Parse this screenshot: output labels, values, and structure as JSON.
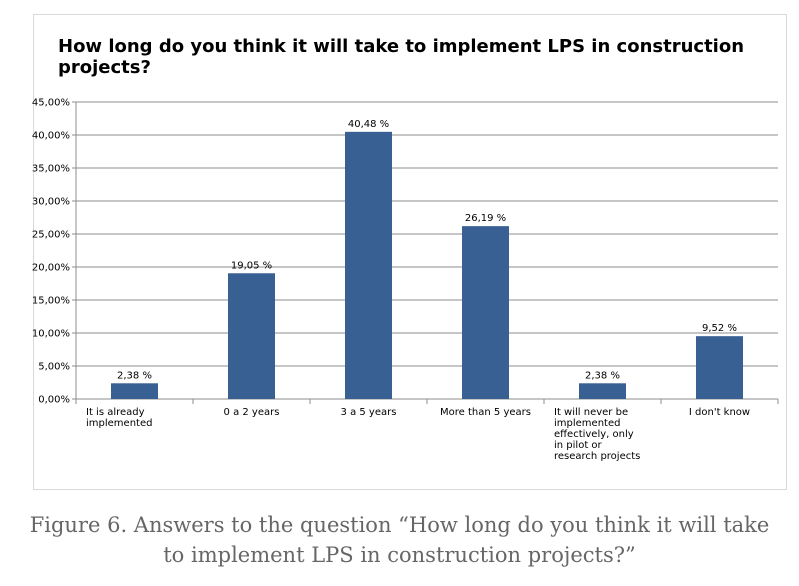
{
  "chart_data": {
    "type": "bar",
    "title": "How long do you think it will take to implement LPS in construction projects?",
    "categories": [
      "It is already implemented",
      "0 a 2 years",
      "3 a 5 years",
      "More than 5 years",
      "It will never be implemented effectively, only in pilot or research projects",
      "I don't know"
    ],
    "values": [
      2.38,
      19.05,
      40.48,
      26.19,
      2.38,
      9.52
    ],
    "value_labels": [
      "2,38 %",
      "19,05 %",
      "40,48 %",
      "26,19 %",
      "2,38 %",
      "9,52 %"
    ],
    "ylim": [
      0,
      45
    ],
    "yticks": [
      0,
      5,
      10,
      15,
      20,
      25,
      30,
      35,
      40,
      45
    ],
    "ytick_labels": [
      "0,00%",
      "5,00%",
      "10,00%",
      "15,00%",
      "20,00%",
      "25,00%",
      "30,00%",
      "35,00%",
      "40,00%",
      "45,00%"
    ],
    "grid": true,
    "legend": "none",
    "bar_color": "#386092"
  },
  "caption": "Figure 6. Answers to the question “How long do you think it will take to implement LPS in construction projects?”"
}
